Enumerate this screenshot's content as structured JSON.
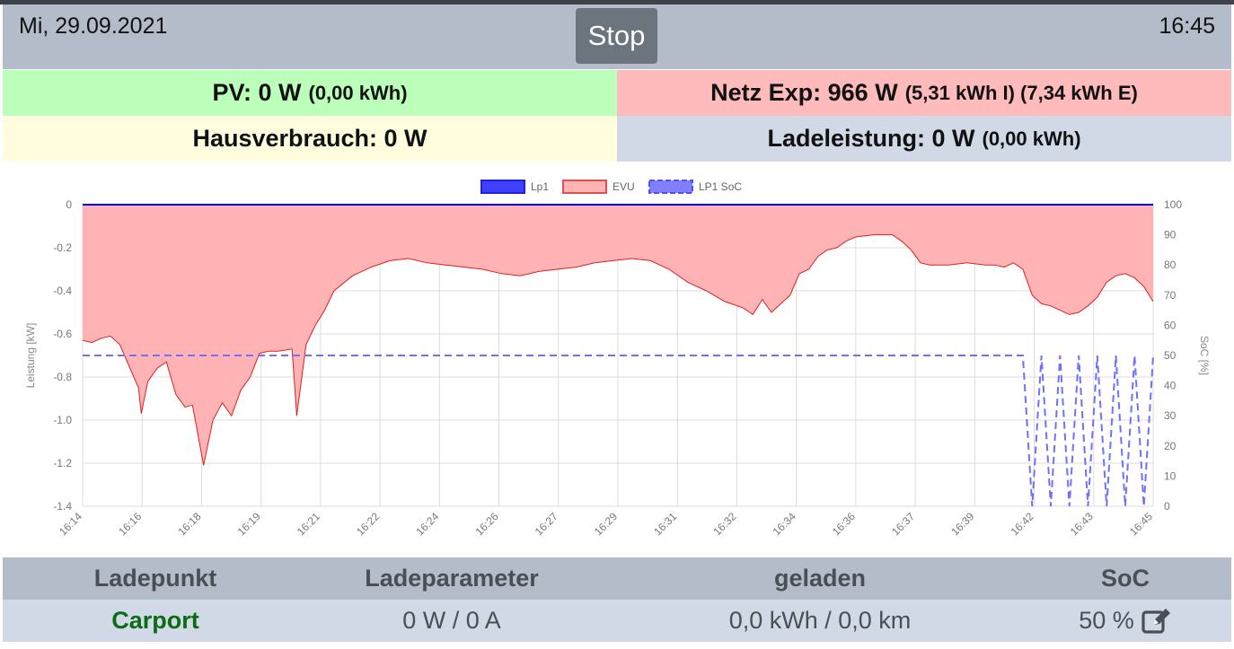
{
  "header": {
    "date": "Mi, 29.09.2021",
    "time": "16:45",
    "stop_label": "Stop"
  },
  "stats": {
    "pv_main": "PV: 0 W",
    "pv_sub": "(0,00 kWh)",
    "netz_main": "Netz Exp: 966 W",
    "netz_sub": "(5,31 kWh I) (7,34 kWh E)",
    "haus_main": "Hausverbrauch: 0 W",
    "lade_main": "Ladeleistung: 0 W",
    "lade_sub": "(0,00 kWh)"
  },
  "colors": {
    "lp1": "#0000ff",
    "evu_fill": "#ffb3b5",
    "evu_line": "#e02020",
    "soc": "#7070ff",
    "carport": "#0b6b16"
  },
  "chart_data": {
    "type": "area",
    "legend": [
      "Lp1",
      "EVU",
      "LP1 SoC"
    ],
    "legend_position": "top-center",
    "ylabel": "Leistung [kW]",
    "y2label": "SoC [%]",
    "ylim": [
      -1.4,
      0
    ],
    "y2lim": [
      0,
      100
    ],
    "yticks": [
      "0",
      "-0.2",
      "-0.4",
      "-0.6",
      "-0.8",
      "-1.0",
      "-1.2",
      "-1.4"
    ],
    "y2ticks": [
      "100",
      "90",
      "80",
      "70",
      "60",
      "50",
      "40",
      "30",
      "20",
      "10",
      "0"
    ],
    "xticks": [
      "16:14",
      "16:16",
      "16:18",
      "16:19",
      "16:21",
      "16:22",
      "16:24",
      "16:26",
      "16:27",
      "16:29",
      "16:31",
      "16:32",
      "16:34",
      "16:36",
      "16:37",
      "16:39",
      "16:42",
      "16:43",
      "16:45"
    ],
    "grid": true,
    "series": [
      {
        "name": "Lp1",
        "values": [
          [
            0,
            0
          ],
          [
            1,
            0
          ]
        ]
      },
      {
        "name": "EVU",
        "values": [
          [
            0,
            -0.63
          ],
          [
            0.01,
            -0.64
          ],
          [
            0.02,
            -0.62
          ],
          [
            0.03,
            -0.61
          ],
          [
            0.04,
            -0.65
          ],
          [
            0.05,
            -0.75
          ],
          [
            0.06,
            -0.85
          ],
          [
            0.063,
            -0.97
          ],
          [
            0.07,
            -0.82
          ],
          [
            0.08,
            -0.76
          ],
          [
            0.09,
            -0.73
          ],
          [
            0.1,
            -0.88
          ],
          [
            0.11,
            -0.94
          ],
          [
            0.118,
            -0.93
          ],
          [
            0.13,
            -1.21
          ],
          [
            0.14,
            -1.0
          ],
          [
            0.15,
            -0.92
          ],
          [
            0.16,
            -0.98
          ],
          [
            0.17,
            -0.86
          ],
          [
            0.18,
            -0.8
          ],
          [
            0.19,
            -0.69
          ],
          [
            0.2,
            -0.68
          ],
          [
            0.21,
            -0.68
          ],
          [
            0.225,
            -0.67
          ],
          [
            0.23,
            -0.98
          ],
          [
            0.24,
            -0.65
          ],
          [
            0.25,
            -0.56
          ],
          [
            0.26,
            -0.49
          ],
          [
            0.27,
            -0.4
          ],
          [
            0.29,
            -0.33
          ],
          [
            0.31,
            -0.29
          ],
          [
            0.33,
            -0.26
          ],
          [
            0.35,
            -0.25
          ],
          [
            0.37,
            -0.27
          ],
          [
            0.39,
            -0.28
          ],
          [
            0.41,
            -0.29
          ],
          [
            0.43,
            -0.3
          ],
          [
            0.45,
            -0.32
          ],
          [
            0.47,
            -0.33
          ],
          [
            0.49,
            -0.31
          ],
          [
            0.51,
            -0.3
          ],
          [
            0.53,
            -0.29
          ],
          [
            0.55,
            -0.27
          ],
          [
            0.57,
            -0.26
          ],
          [
            0.59,
            -0.25
          ],
          [
            0.61,
            -0.26
          ],
          [
            0.63,
            -0.3
          ],
          [
            0.65,
            -0.36
          ],
          [
            0.67,
            -0.4
          ],
          [
            0.69,
            -0.45
          ],
          [
            0.71,
            -0.48
          ],
          [
            0.72,
            -0.51
          ],
          [
            0.73,
            -0.44
          ],
          [
            0.74,
            -0.5
          ],
          [
            0.75,
            -0.46
          ],
          [
            0.76,
            -0.42
          ],
          [
            0.77,
            -0.32
          ],
          [
            0.78,
            -0.3
          ],
          [
            0.79,
            -0.24
          ],
          [
            0.8,
            -0.21
          ],
          [
            0.81,
            -0.2
          ],
          [
            0.82,
            -0.17
          ],
          [
            0.83,
            -0.15
          ],
          [
            0.85,
            -0.14
          ],
          [
            0.87,
            -0.14
          ],
          [
            0.88,
            -0.17
          ],
          [
            0.89,
            -0.21
          ],
          [
            0.9,
            -0.27
          ],
          [
            0.91,
            -0.28
          ],
          [
            0.93,
            -0.28
          ],
          [
            0.95,
            -0.27
          ],
          [
            0.97,
            -0.28
          ],
          [
            0.98,
            -0.28
          ],
          [
            0.99,
            -0.29
          ],
          [
            1.0,
            -0.27
          ],
          [
            1.01,
            -0.3
          ],
          [
            1.02,
            -0.42
          ],
          [
            1.03,
            -0.46
          ],
          [
            1.04,
            -0.47
          ],
          [
            1.05,
            -0.49
          ],
          [
            1.06,
            -0.51
          ],
          [
            1.07,
            -0.5
          ],
          [
            1.08,
            -0.47
          ],
          [
            1.09,
            -0.43
          ],
          [
            1.1,
            -0.36
          ],
          [
            1.11,
            -0.33
          ],
          [
            1.12,
            -0.32
          ],
          [
            1.13,
            -0.34
          ],
          [
            1.14,
            -0.38
          ],
          [
            1.15,
            -0.45
          ]
        ]
      },
      {
        "name": "LP1 SoC",
        "values": [
          [
            0,
            50
          ],
          [
            1.01,
            50
          ],
          [
            1.02,
            0
          ],
          [
            1.03,
            50
          ],
          [
            1.04,
            0
          ],
          [
            1.05,
            50
          ],
          [
            1.06,
            0
          ],
          [
            1.07,
            50
          ],
          [
            1.08,
            0
          ],
          [
            1.09,
            50
          ],
          [
            1.1,
            0
          ],
          [
            1.11,
            50
          ],
          [
            1.12,
            0
          ],
          [
            1.13,
            50
          ],
          [
            1.14,
            0
          ],
          [
            1.15,
            50
          ]
        ]
      }
    ]
  },
  "table": {
    "headers": [
      "Ladepunkt",
      "Ladeparameter",
      "geladen",
      "SoC"
    ],
    "row": {
      "name": "Carport",
      "params": "0 W / 0 A",
      "charged": "0,0 kWh / 0,0 km",
      "soc": "50 %"
    }
  }
}
